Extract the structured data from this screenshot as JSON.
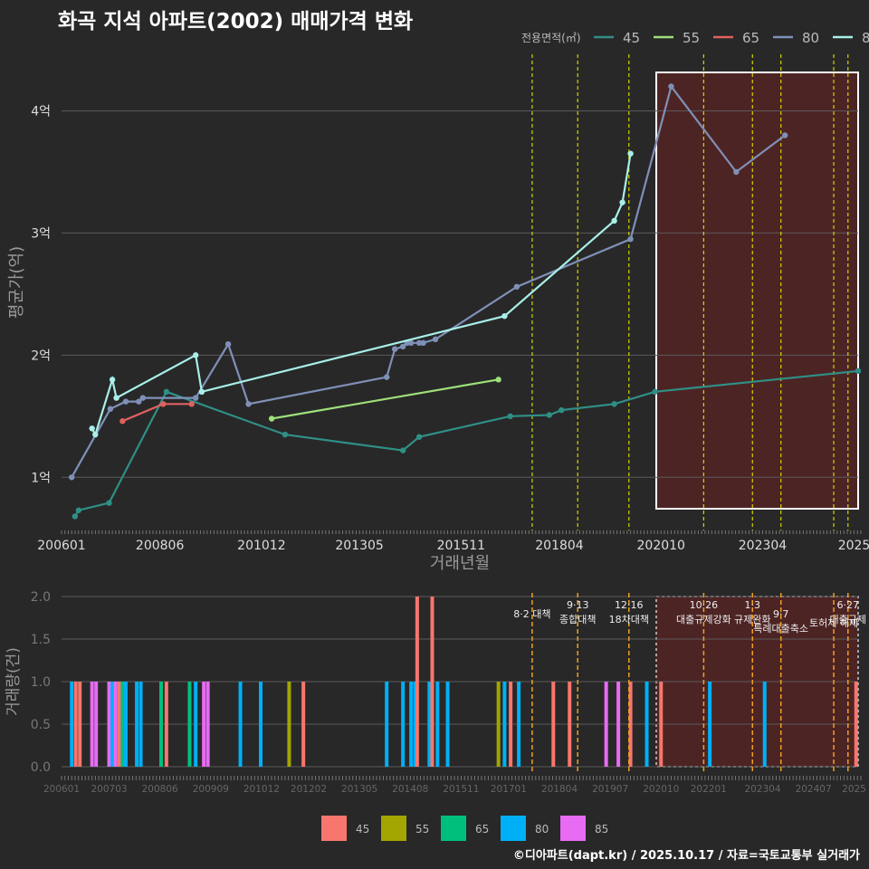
{
  "title": "화곡 지석 아파트(2002) 매매가격 변화",
  "footer": "©디아파트(dapt.kr) / 2025.10.17 / 자료=국토교통부 실거래가",
  "colors": {
    "45": "#2f8f86",
    "55": "#9ee07a",
    "65": "#e06060",
    "80": "#7f90b8",
    "85": "#a8efe8",
    "bar45": "#f8766d",
    "bar55": "#a3a500",
    "bar65": "#00bf7d",
    "bar80": "#00b0f6",
    "bar85": "#e76bf3",
    "grid": "#5a5a5a",
    "text": "#bbbbbb",
    "accent": "#ffffff"
  },
  "chart_data": [
    {
      "type": "line",
      "title": "화곡 지석 아파트(2002) 매매가격 변화",
      "xlabel": "거래년월",
      "ylabel": "평균가(억)",
      "legend_title": "전용면적(㎡)",
      "xlim": [
        2006.0,
        2025.6
      ],
      "ylim": [
        0.55,
        4.5
      ],
      "yticks": [
        1,
        2,
        3,
        4
      ],
      "ytick_labels": [
        "1억",
        "2억",
        "3억",
        "4억"
      ],
      "xticks": [
        2006.0,
        2008.42,
        2010.92,
        2013.33,
        2015.83,
        2018.25,
        2020.75,
        2023.25,
        2025.5
      ],
      "xtick_labels": [
        "200601",
        "200806",
        "201012",
        "201305",
        "201511",
        "201804",
        "202010",
        "202304",
        "2025"
      ],
      "series": [
        {
          "name": "45",
          "x": [
            2006.33,
            2006.42,
            2007.17,
            2008.58,
            2011.5,
            2014.4,
            2014.8,
            2017.04,
            2018.0,
            2018.3,
            2019.6,
            2020.6,
            2025.6
          ],
          "y": [
            0.68,
            0.73,
            0.79,
            1.7,
            1.35,
            1.22,
            1.33,
            1.5,
            1.51,
            1.55,
            1.6,
            1.7,
            1.87
          ]
        },
        {
          "name": "55",
          "x": [
            2011.17,
            2016.75
          ],
          "y": [
            1.48,
            1.8
          ]
        },
        {
          "name": "65",
          "x": [
            2007.5,
            2008.5,
            2009.2
          ],
          "y": [
            1.46,
            1.6,
            1.6
          ]
        },
        {
          "name": "80",
          "x": [
            2006.25,
            2007.2,
            2007.58,
            2007.9,
            2008.0,
            2009.3,
            2010.1,
            2010.6,
            2014.0,
            2014.2,
            2014.4,
            2014.5,
            2014.6,
            2014.8,
            2014.9,
            2015.2,
            2017.2,
            2020.0,
            2021.0,
            2022.6,
            2023.8
          ],
          "y": [
            1.0,
            1.56,
            1.62,
            1.62,
            1.65,
            1.65,
            2.09,
            1.6,
            1.82,
            2.05,
            2.07,
            2.1,
            2.1,
            2.1,
            2.1,
            2.13,
            2.56,
            2.95,
            4.2,
            3.5,
            3.8
          ]
        },
        {
          "name": "85",
          "x": [
            2006.75,
            2006.83,
            2007.25,
            2007.35,
            2009.3,
            2009.45,
            2016.9,
            2019.6,
            2019.8,
            2020.0
          ],
          "y": [
            1.4,
            1.35,
            1.8,
            1.65,
            2.0,
            1.7,
            2.32,
            3.1,
            3.25,
            3.65
          ]
        }
      ],
      "policy_dates": [
        2017.58,
        2018.7,
        2019.96,
        2021.8,
        2023.0,
        2023.7,
        2025.0,
        2025.35
      ],
      "highlight_period": [
        2020.0,
        2025.6
      ]
    },
    {
      "type": "bar",
      "ylabel": "거래량(건)",
      "ylim": [
        0,
        2.0
      ],
      "yticks": [
        0.0,
        0.5,
        1.0,
        1.5,
        2.0
      ],
      "ytick_labels": [
        "0.0",
        "0.5",
        "1.0",
        "1.5",
        "2.0"
      ],
      "xticks": [
        2006.0,
        2007.17,
        2008.42,
        2009.67,
        2010.92,
        2012.08,
        2013.33,
        2014.58,
        2015.83,
        2017.0,
        2018.25,
        2019.5,
        2020.75,
        2021.92,
        2023.25,
        2024.5,
        2025.5
      ],
      "xtick_labels": [
        "200601",
        "200703",
        "200806",
        "200909",
        "201012",
        "201202",
        "201305",
        "201408",
        "201511",
        "201701",
        "201804",
        "201907",
        "202010",
        "202201",
        "202304",
        "202407",
        "2025"
      ],
      "categories": [
        "45",
        "55",
        "65",
        "80",
        "85"
      ],
      "bars": [
        {
          "x": 2006.25,
          "s": "80",
          "v": 1
        },
        {
          "x": 2006.35,
          "s": "45",
          "v": 1
        },
        {
          "x": 2006.45,
          "s": "45",
          "v": 1
        },
        {
          "x": 2006.75,
          "s": "85",
          "v": 1
        },
        {
          "x": 2006.85,
          "s": "85",
          "v": 1
        },
        {
          "x": 2007.17,
          "s": "85",
          "v": 1
        },
        {
          "x": 2007.25,
          "s": "80",
          "v": 1
        },
        {
          "x": 2007.33,
          "s": "85",
          "v": 1
        },
        {
          "x": 2007.42,
          "s": "45",
          "v": 1
        },
        {
          "x": 2007.5,
          "s": "65",
          "v": 1
        },
        {
          "x": 2007.58,
          "s": "80",
          "v": 1
        },
        {
          "x": 2007.85,
          "s": "80",
          "v": 1
        },
        {
          "x": 2007.95,
          "s": "80",
          "v": 1
        },
        {
          "x": 2008.45,
          "s": "65",
          "v": 1
        },
        {
          "x": 2008.58,
          "s": "45",
          "v": 1
        },
        {
          "x": 2009.15,
          "s": "65",
          "v": 1
        },
        {
          "x": 2009.3,
          "s": "80",
          "v": 1
        },
        {
          "x": 2009.5,
          "s": "85",
          "v": 1
        },
        {
          "x": 2009.6,
          "s": "85",
          "v": 1
        },
        {
          "x": 2010.4,
          "s": "80",
          "v": 1
        },
        {
          "x": 2010.9,
          "s": "80",
          "v": 1
        },
        {
          "x": 2011.6,
          "s": "55",
          "v": 1
        },
        {
          "x": 2011.95,
          "s": "45",
          "v": 1
        },
        {
          "x": 2014.0,
          "s": "80",
          "v": 1
        },
        {
          "x": 2014.4,
          "s": "80",
          "v": 1
        },
        {
          "x": 2014.6,
          "s": "80",
          "v": 1
        },
        {
          "x": 2014.7,
          "s": "80",
          "v": 1
        },
        {
          "x": 2014.75,
          "s": "45",
          "v": 2
        },
        {
          "x": 2015.05,
          "s": "80",
          "v": 1
        },
        {
          "x": 2015.12,
          "s": "45",
          "v": 2
        },
        {
          "x": 2015.25,
          "s": "80",
          "v": 1
        },
        {
          "x": 2015.5,
          "s": "80",
          "v": 1
        },
        {
          "x": 2016.75,
          "s": "55",
          "v": 1
        },
        {
          "x": 2016.9,
          "s": "80",
          "v": 1
        },
        {
          "x": 2017.05,
          "s": "45",
          "v": 1
        },
        {
          "x": 2017.25,
          "s": "80",
          "v": 1
        },
        {
          "x": 2018.1,
          "s": "45",
          "v": 1
        },
        {
          "x": 2018.5,
          "s": "45",
          "v": 1
        },
        {
          "x": 2019.4,
          "s": "85",
          "v": 1
        },
        {
          "x": 2019.7,
          "s": "85",
          "v": 1
        },
        {
          "x": 2020.0,
          "s": "45",
          "v": 1
        },
        {
          "x": 2020.4,
          "s": "80",
          "v": 1
        },
        {
          "x": 2020.75,
          "s": "45",
          "v": 1
        },
        {
          "x": 2021.95,
          "s": "80",
          "v": 1
        },
        {
          "x": 2023.3,
          "s": "80",
          "v": 1
        },
        {
          "x": 2025.55,
          "s": "45",
          "v": 1
        }
      ],
      "policy_dates": [
        2017.58,
        2018.7,
        2019.96,
        2021.8,
        2023.0,
        2023.7,
        2025.0,
        2025.35
      ],
      "policy_labels": [
        {
          "date": "8·2 대책",
          "text": "",
          "x": 2017.58,
          "row": 1
        },
        {
          "date": "9·13",
          "text": "종합대책",
          "x": 2018.7,
          "row": 0
        },
        {
          "date": "12·16",
          "text": "18차대책",
          "x": 2019.96,
          "row": 0
        },
        {
          "date": "10·26",
          "text": "대출규제강화",
          "x": 2021.8,
          "row": 0
        },
        {
          "date": "1·3",
          "text": "규제완화",
          "x": 2023.0,
          "row": 0
        },
        {
          "date": "9·7",
          "text": "특례대출축소",
          "x": 2023.7,
          "row": 1
        },
        {
          "date": "토허제 해제",
          "text": "",
          "x": 2025.0,
          "row": 2
        },
        {
          "date": "6·27",
          "text": "대출규제",
          "x": 2025.35,
          "row": 0
        }
      ],
      "highlight_period": [
        2020.0,
        2025.6
      ]
    }
  ]
}
